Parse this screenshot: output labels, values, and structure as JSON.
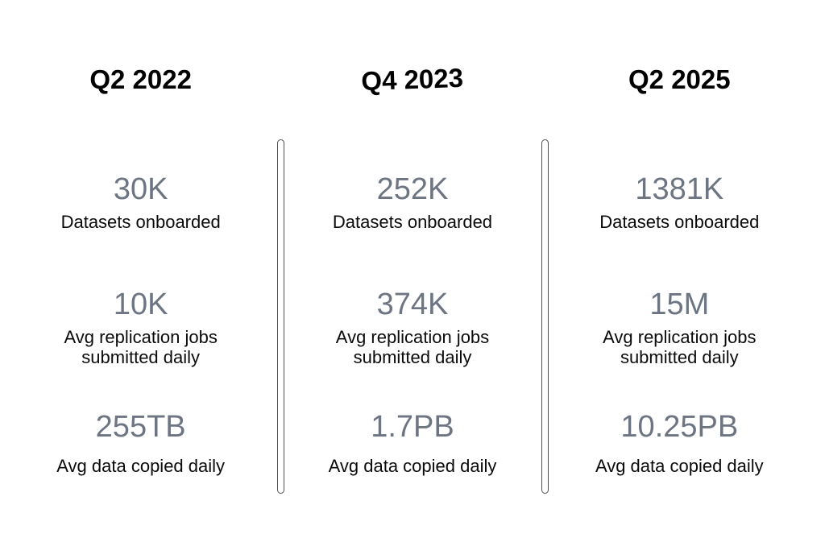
{
  "colors": {
    "background": "#ffffff",
    "header_text": "#000000",
    "value_text": "#6d7583",
    "label_text": "#0b0b0b",
    "divider": "#4e4f51"
  },
  "columns": [
    {
      "header": "Q2 2022",
      "metrics": [
        {
          "value": "30K",
          "label": "Datasets onboarded"
        },
        {
          "value": "10K",
          "label": "Avg replication jobs submitted daily"
        },
        {
          "value": "255TB",
          "label": "Avg data copied daily"
        }
      ]
    },
    {
      "header": "Q4 2023",
      "metrics": [
        {
          "value": "252K",
          "label": "Datasets onboarded"
        },
        {
          "value": "374K",
          "label": "Avg replication jobs submitted daily"
        },
        {
          "value": "1.7PB",
          "label": "Avg data copied daily"
        }
      ]
    },
    {
      "header": "Q2 2025",
      "metrics": [
        {
          "value": "1381K",
          "label": "Datasets onboarded"
        },
        {
          "value": "15M",
          "label": "Avg replication jobs submitted daily"
        },
        {
          "value": "10.25PB",
          "label": "Avg data copied daily"
        }
      ]
    }
  ],
  "chart_data": {
    "type": "table",
    "title": "",
    "columns": [
      "Q2 2022",
      "Q4 2023",
      "Q2 2025"
    ],
    "rows": [
      {
        "metric": "Datasets onboarded",
        "values": [
          "30K",
          "252K",
          "1381K"
        ]
      },
      {
        "metric": "Avg replication jobs submitted daily",
        "values": [
          "10K",
          "374K",
          "15M"
        ]
      },
      {
        "metric": "Avg data copied daily",
        "values": [
          "255TB",
          "1.7PB",
          "10.25PB"
        ]
      }
    ]
  }
}
